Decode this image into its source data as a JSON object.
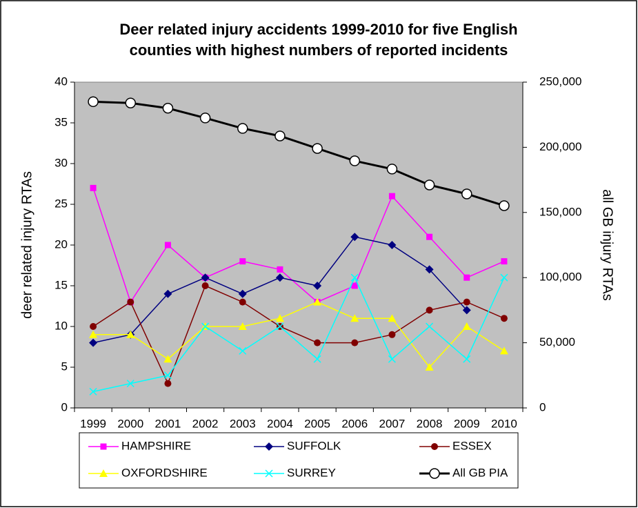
{
  "chart_data": {
    "type": "line",
    "title": "Deer related injury accidents 1999-2010 for five English counties with highest numbers of reported incidents",
    "ylabel": "deer related injury RTAs",
    "y2label": "all GB injury RTAs",
    "categories": [
      "1999",
      "2000",
      "2001",
      "2002",
      "2003",
      "2004",
      "2005",
      "2006",
      "2007",
      "2008",
      "2009",
      "2010"
    ],
    "ylim": [
      0,
      40
    ],
    "yticks": [
      0,
      5,
      10,
      15,
      20,
      25,
      30,
      35,
      40
    ],
    "y2lim": [
      0,
      250000
    ],
    "y2ticks": [
      {
        "value": 0,
        "label": "0"
      },
      {
        "value": 50000,
        "label": "50,000"
      },
      {
        "value": 100000,
        "label": "100,000"
      },
      {
        "value": 150000,
        "label": "150,000"
      },
      {
        "value": 200000,
        "label": "200,000"
      },
      {
        "value": 250000,
        "label": "250,000"
      }
    ],
    "legend": "bottom",
    "series": [
      {
        "name": "HAMPSHIRE",
        "color": "#ff00ff",
        "marker": "square",
        "values": [
          27,
          13,
          20,
          16,
          18,
          17,
          13,
          15,
          26,
          21,
          16,
          18
        ]
      },
      {
        "name": "SUFFOLK",
        "color": "#000080",
        "marker": "diamond",
        "values": [
          8,
          9,
          14,
          16,
          14,
          16,
          15,
          21,
          20,
          17,
          12,
          null
        ]
      },
      {
        "name": "ESSEX",
        "color": "#800000",
        "marker": "circle",
        "values": [
          10,
          13,
          3,
          15,
          13,
          10,
          8,
          8,
          9,
          12,
          13,
          11
        ]
      },
      {
        "name": "OXFORDSHIRE",
        "color": "#ffff00",
        "marker": "triangle",
        "values": [
          9,
          9,
          6,
          10,
          10,
          11,
          13,
          11,
          11,
          5,
          10,
          7
        ]
      },
      {
        "name": "SURREY",
        "color": "#00ffff",
        "marker": "x",
        "values": [
          2,
          3,
          4,
          10,
          7,
          10,
          6,
          16,
          6,
          10,
          6,
          16
        ]
      },
      {
        "name": "All GB PIA",
        "color": "#000000",
        "marker": "open-circle",
        "axis": "y2",
        "values": [
          235000,
          234000,
          230000,
          222500,
          214500,
          208700,
          199100,
          189600,
          183300,
          171100,
          164200,
          155200
        ]
      }
    ]
  }
}
